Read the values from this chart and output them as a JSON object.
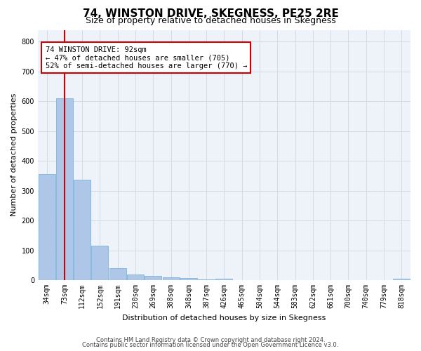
{
  "title1": "74, WINSTON DRIVE, SKEGNESS, PE25 2RE",
  "title2": "Size of property relative to detached houses in Skegness",
  "xlabel": "Distribution of detached houses by size in Skegness",
  "ylabel": "Number of detached properties",
  "footnote1": "Contains HM Land Registry data © Crown copyright and database right 2024.",
  "footnote2": "Contains public sector information licensed under the Open Government Licence v3.0.",
  "bin_labels": [
    "34sqm",
    "73sqm",
    "112sqm",
    "152sqm",
    "191sqm",
    "230sqm",
    "269sqm",
    "308sqm",
    "348sqm",
    "387sqm",
    "426sqm",
    "465sqm",
    "504sqm",
    "544sqm",
    "583sqm",
    "622sqm",
    "661sqm",
    "700sqm",
    "740sqm",
    "779sqm",
    "818sqm"
  ],
  "bar_heights": [
    355,
    610,
    338,
    115,
    40,
    20,
    15,
    10,
    8,
    3,
    5,
    0,
    0,
    0,
    0,
    0,
    0,
    0,
    0,
    0,
    5
  ],
  "bar_color": "#aec6e8",
  "bar_edge_color": "#6baed6",
  "property_size": 92,
  "annotation_title": "74 WINSTON DRIVE: 92sqm",
  "annotation_line1": "← 47% of detached houses are smaller (705)",
  "annotation_line2": "52% of semi-detached houses are larger (770) →",
  "red_line_color": "#cc0000",
  "annotation_box_color": "#ffffff",
  "annotation_box_edge": "#cc0000",
  "ylim": [
    0,
    840
  ],
  "yticks": [
    0,
    100,
    200,
    300,
    400,
    500,
    600,
    700,
    800
  ],
  "grid_color": "#d0dce8",
  "bg_color": "#eef2f9",
  "title1_fontsize": 11,
  "title2_fontsize": 9,
  "xlabel_fontsize": 8,
  "ylabel_fontsize": 8,
  "tick_fontsize": 7,
  "annotation_fontsize": 7.5,
  "footnote_fontsize": 6
}
